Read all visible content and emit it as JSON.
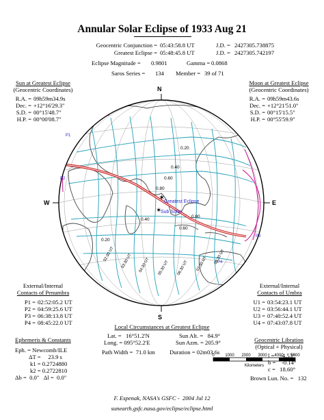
{
  "title": "Annular Solar Eclipse of  1933 Aug 21",
  "conjunction": {
    "label": "Geocentric Conjunction =",
    "value": "05:43:58.8 UT",
    "jd_label": "J.D. =",
    "jd": "2427305.738875"
  },
  "greatest": {
    "label": "Greatest Eclipse =",
    "value": "05:48:45.8 UT",
    "jd_label": "J.D. =",
    "jd": "2427305.742197"
  },
  "magnitude": {
    "label": "Eclipse Magnitude =",
    "value": "0.9801",
    "gamma_label": "Gamma =",
    "gamma": "0.0868"
  },
  "saros": {
    "label": "Saros Series =",
    "value": "134",
    "member_label": "Member =",
    "member": "39 of 71"
  },
  "sun": {
    "header": "Sun at Greatest Eclipse",
    "sub": "(Geocentric Coordinates)",
    "rows": [
      {
        "k": "R.A. =",
        "v": "09h59m34.9s"
      },
      {
        "k": "Dec. =",
        "v": "+12°16'29.3\""
      },
      {
        "k": "S.D. =",
        "v": "00°15'48.7\""
      },
      {
        "k": "H.P. =",
        "v": "00°00'08.7\""
      }
    ]
  },
  "moon": {
    "header": "Moon at Greatest Eclipse",
    "sub": "(Geocentric Coordinates)",
    "rows": [
      {
        "k": "R.A. =",
        "v": "09h59m43.6s"
      },
      {
        "k": "Dec. =",
        "v": "+12°21'51.0\""
      },
      {
        "k": "S.D. =",
        "v": "00°15'15.5\""
      },
      {
        "k": "H.P. =",
        "v": "00°55'59.9\""
      }
    ]
  },
  "compass": {
    "n": "N",
    "s": "S",
    "e": "E",
    "w": "W"
  },
  "map_labels": {
    "greatest": "Greatest Eclipse",
    "subsolar": "Sub Solar",
    "p1": "P1",
    "p2": "P2",
    "p3": "P3",
    "p4": "P4",
    "mags": [
      "0.20",
      "0.40",
      "0.60",
      "0.80",
      "0.20",
      "0.40",
      "0.60",
      "0.80"
    ],
    "times": [
      "02:30 UT",
      "03:30 UT",
      "04:30 UT",
      "05:30 UT",
      "06:30 UT",
      "07:30 UT",
      "08:30 UT"
    ]
  },
  "penumbra": {
    "header1": "External/Internal",
    "header2": "Contacts of Penumbra",
    "rows": [
      {
        "k": "P1 =",
        "v": "02:52:05.2 UT"
      },
      {
        "k": "P2 =",
        "v": "04:59:25.6 UT"
      },
      {
        "k": "P3 =",
        "v": "06:38:13.8 UT"
      },
      {
        "k": "P4 =",
        "v": "08:45:22.0 UT"
      }
    ]
  },
  "umbra": {
    "header1": "External/Internal",
    "header2": "Contacts of Umbra",
    "rows": [
      {
        "k": "U1 =",
        "v": "03:54:23.1 UT"
      },
      {
        "k": "U2 =",
        "v": "03:56:44.1 UT"
      },
      {
        "k": "U3 =",
        "v": "07:40:52.4 UT"
      },
      {
        "k": "U4 =",
        "v": "07:43:07.8 UT"
      }
    ]
  },
  "local": {
    "header": "Local Circumstances at Greatest Eclipse",
    "lat": "Lat. =   16°51.2'N",
    "long": "Long. = 095°52.2'E",
    "alt": "Sun Alt. =   84.9°",
    "azm": "Sun Azm. = 205.9°",
    "width": "Path Width =  71.0 km",
    "duration": "Duration = 02m03.6s"
  },
  "ephemeris": {
    "header": "Ephemeris & Constants",
    "eph": "Eph. = Newcomb/ILE",
    "dt": "ΔT =     23.9 s",
    "k1": "k1 = 0.2724880",
    "k2": "k2 = 0.2722810",
    "db": "Δb =  0.0\"   Δl =  0.0\""
  },
  "scale": {
    "ticks": [
      "0",
      "1000",
      "2000",
      "3000",
      "4000",
      "5000"
    ],
    "label": "Kilometers"
  },
  "libration": {
    "header": "Geocentric Libration",
    "sub": "(Optical + Physical)",
    "l": "l =    -4.53°",
    "b": "b =    -0.14°",
    "c": "c =   18.60°",
    "brown": "Brown Lun. No. =   132"
  },
  "credit": "F. Espenak, NASA's GSFC -  2004 Jul 12",
  "url": "sunearth.gsfc.nasa.gov/eclipse/eclipse.html",
  "colors": {
    "umbra_path": "#cc2222",
    "penumbra_lines": "#22a0b8",
    "limits": "#cc2299",
    "land": "#444444"
  }
}
